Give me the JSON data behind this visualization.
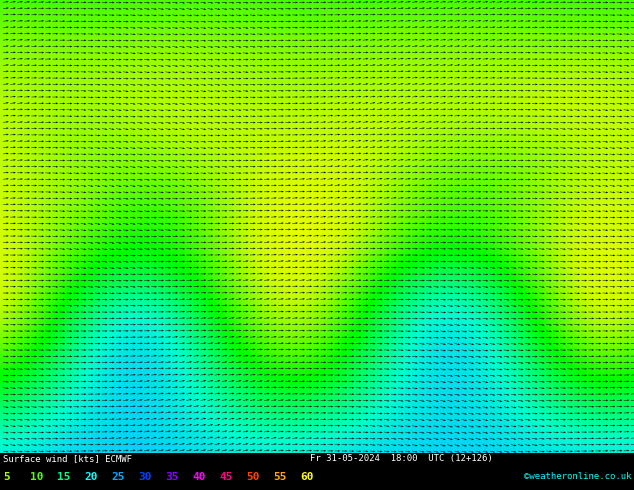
{
  "title_line1": "Surface wind [kts] ECMWF",
  "title_line2": "Fr 31-05-2024  18:00  UTC (12+126)",
  "copyright": "©weatheronline.co.uk",
  "legend_labels": [
    "5",
    "10",
    "15",
    "20",
    "25",
    "30",
    "35",
    "40",
    "45",
    "50",
    "55",
    "60"
  ],
  "legend_colors": [
    "#aaff00",
    "#55ff00",
    "#00ff88",
    "#00ffff",
    "#00aaff",
    "#0044ff",
    "#8800ff",
    "#ff00ff",
    "#ff0088",
    "#ff4400",
    "#ffaa00",
    "#ffff00"
  ],
  "colormap_stops": [
    [
      0.0,
      "#cc00cc"
    ],
    [
      0.05,
      "#8800ff"
    ],
    [
      0.12,
      "#0000ff"
    ],
    [
      0.2,
      "#0066ff"
    ],
    [
      0.28,
      "#00ccff"
    ],
    [
      0.36,
      "#00ffcc"
    ],
    [
      0.44,
      "#00ff66"
    ],
    [
      0.52,
      "#00ff00"
    ],
    [
      0.6,
      "#66ff00"
    ],
    [
      0.68,
      "#ccff00"
    ],
    [
      0.76,
      "#ffff00"
    ],
    [
      0.84,
      "#ffaa00"
    ],
    [
      0.92,
      "#ff5500"
    ],
    [
      1.0,
      "#ff0000"
    ]
  ],
  "vmin": 0,
  "vmax": 50,
  "figsize": [
    6.34,
    4.9
  ],
  "dpi": 100,
  "bg_color": "#000000",
  "arrow_color": "#000000",
  "bottom_text_color": "#ffffff",
  "copyright_color": "#00ffff"
}
